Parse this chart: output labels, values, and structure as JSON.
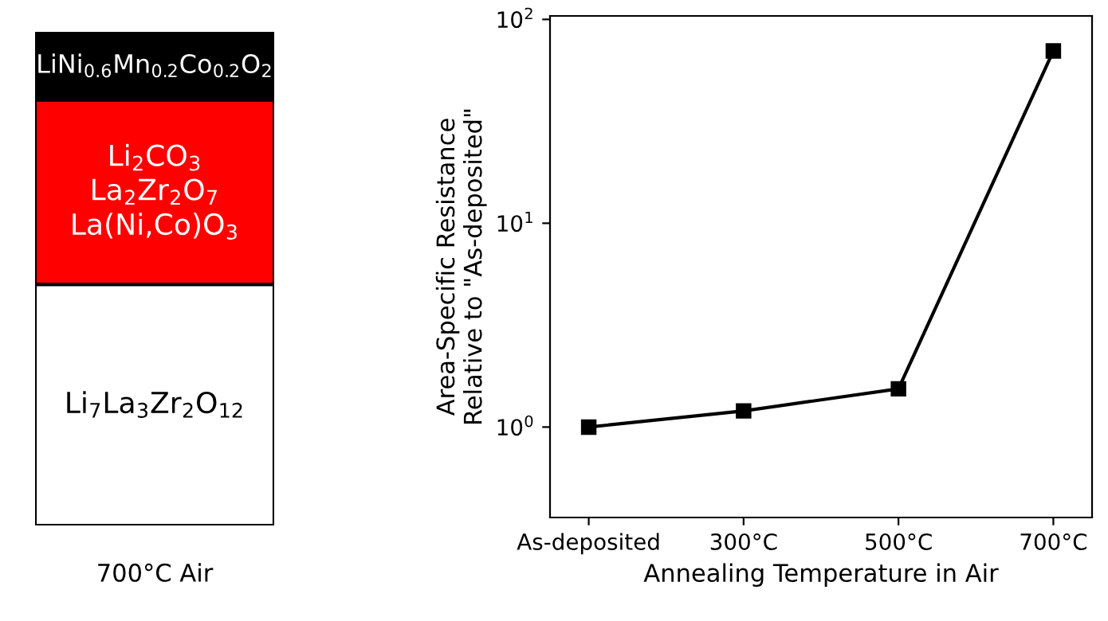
{
  "chart_data": [
    {
      "type": "other",
      "categories": [
        "LiNi$_{0.6}$Mn$_{0.2}$Co$_{0.2}$O$_{2}$",
        "Li$_{2}$CO$_{3}$\nLa$_{2}$Zr$_{2}$O$_{7}$\nLa(Ni,Co)O$_{3}$",
        "Li$_{7}$La$_{3}$Zr$_{2}$O$_{12}$"
      ],
      "colors": [
        "#000000",
        "#ff0000",
        "#ffffff"
      ],
      "xlabel": "700°C Air"
    },
    {
      "type": "line",
      "categories": [
        "As-deposited",
        "300°C",
        "500°C",
        "700°C"
      ],
      "values": [
        1.0,
        1.2,
        1.54,
        70
      ],
      "color": "#000000",
      "marker": "square",
      "line_style": "solid",
      "log": "y",
      "ylim": [
        0.36,
        104
      ],
      "yticks": [
        {
          "value": 1,
          "label": "10$^{0}$"
        },
        {
          "value": 10,
          "label": "10$^{1}$"
        },
        {
          "value": 100,
          "label": "10$^{2}$"
        }
      ],
      "xlabel": "Annealing Temperature in Air",
      "ylabel": "Area-Specific Resistance\nRelative to \"As-deposited\"",
      "grid": false,
      "legend": false
    }
  ]
}
